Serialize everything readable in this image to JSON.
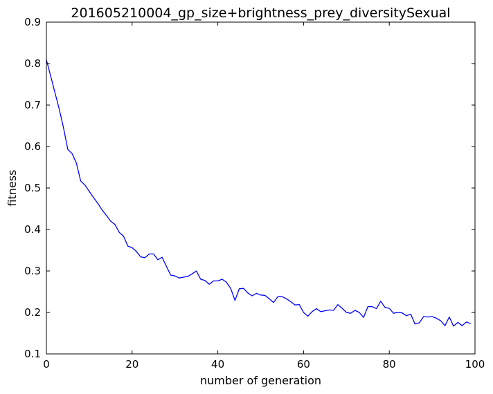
{
  "chart_data": {
    "type": "line",
    "title": "201605210004_gp_size+brightness_prey_diversitySexual",
    "xlabel": "number of generation",
    "ylabel": "fitness",
    "xlim": [
      0,
      100
    ],
    "ylim": [
      0.1,
      0.9
    ],
    "xticks": [
      0,
      20,
      40,
      60,
      80,
      100
    ],
    "xtick_labels": [
      "0",
      "20",
      "40",
      "60",
      "80",
      "100"
    ],
    "yticks": [
      0.1,
      0.2,
      0.3,
      0.4,
      0.5,
      0.6,
      0.7,
      0.8,
      0.9
    ],
    "ytick_labels": [
      "0.1",
      "0.2",
      "0.3",
      "0.4",
      "0.5",
      "0.6",
      "0.7",
      "0.8",
      "0.9"
    ],
    "grid": false,
    "line_color": "#0000ff",
    "series": [
      {
        "x": [
          0,
          1,
          2,
          3,
          4,
          5,
          6,
          7,
          8,
          9,
          10,
          11,
          12,
          13,
          14,
          15,
          16,
          17,
          18,
          19,
          20,
          21,
          22,
          23,
          24,
          25,
          26,
          27,
          28,
          29,
          30,
          31,
          32,
          33,
          34,
          35,
          36,
          37,
          38,
          39,
          40,
          41,
          42,
          43,
          44,
          45,
          46,
          47,
          48,
          49,
          50,
          51,
          52,
          53,
          54,
          55,
          56,
          57,
          58,
          59,
          60,
          61,
          62,
          63,
          64,
          65,
          66,
          67,
          68,
          69,
          70,
          71,
          72,
          73,
          74,
          75,
          76,
          77,
          78,
          79,
          80,
          81,
          82,
          83,
          84,
          85,
          86,
          87,
          88,
          89,
          90,
          91,
          92,
          93,
          94,
          95,
          96,
          97,
          98,
          99
        ],
        "values": [
          0.809,
          0.77,
          0.73,
          0.69,
          0.645,
          0.593,
          0.583,
          0.56,
          0.517,
          0.507,
          0.492,
          0.477,
          0.463,
          0.447,
          0.434,
          0.42,
          0.412,
          0.393,
          0.384,
          0.36,
          0.356,
          0.347,
          0.334,
          0.332,
          0.341,
          0.341,
          0.327,
          0.333,
          0.311,
          0.29,
          0.288,
          0.283,
          0.285,
          0.287,
          0.293,
          0.3,
          0.28,
          0.277,
          0.268,
          0.276,
          0.276,
          0.28,
          0.273,
          0.258,
          0.229,
          0.257,
          0.258,
          0.247,
          0.24,
          0.246,
          0.242,
          0.241,
          0.233,
          0.224,
          0.238,
          0.238,
          0.233,
          0.226,
          0.218,
          0.219,
          0.2,
          0.191,
          0.202,
          0.209,
          0.202,
          0.204,
          0.206,
          0.205,
          0.219,
          0.21,
          0.2,
          0.198,
          0.205,
          0.2,
          0.188,
          0.214,
          0.214,
          0.209,
          0.227,
          0.212,
          0.21,
          0.198,
          0.2,
          0.199,
          0.192,
          0.196,
          0.172,
          0.175,
          0.19,
          0.189,
          0.19,
          0.186,
          0.18,
          0.168,
          0.189,
          0.167,
          0.176,
          0.168,
          0.177,
          0.173
        ]
      }
    ]
  }
}
